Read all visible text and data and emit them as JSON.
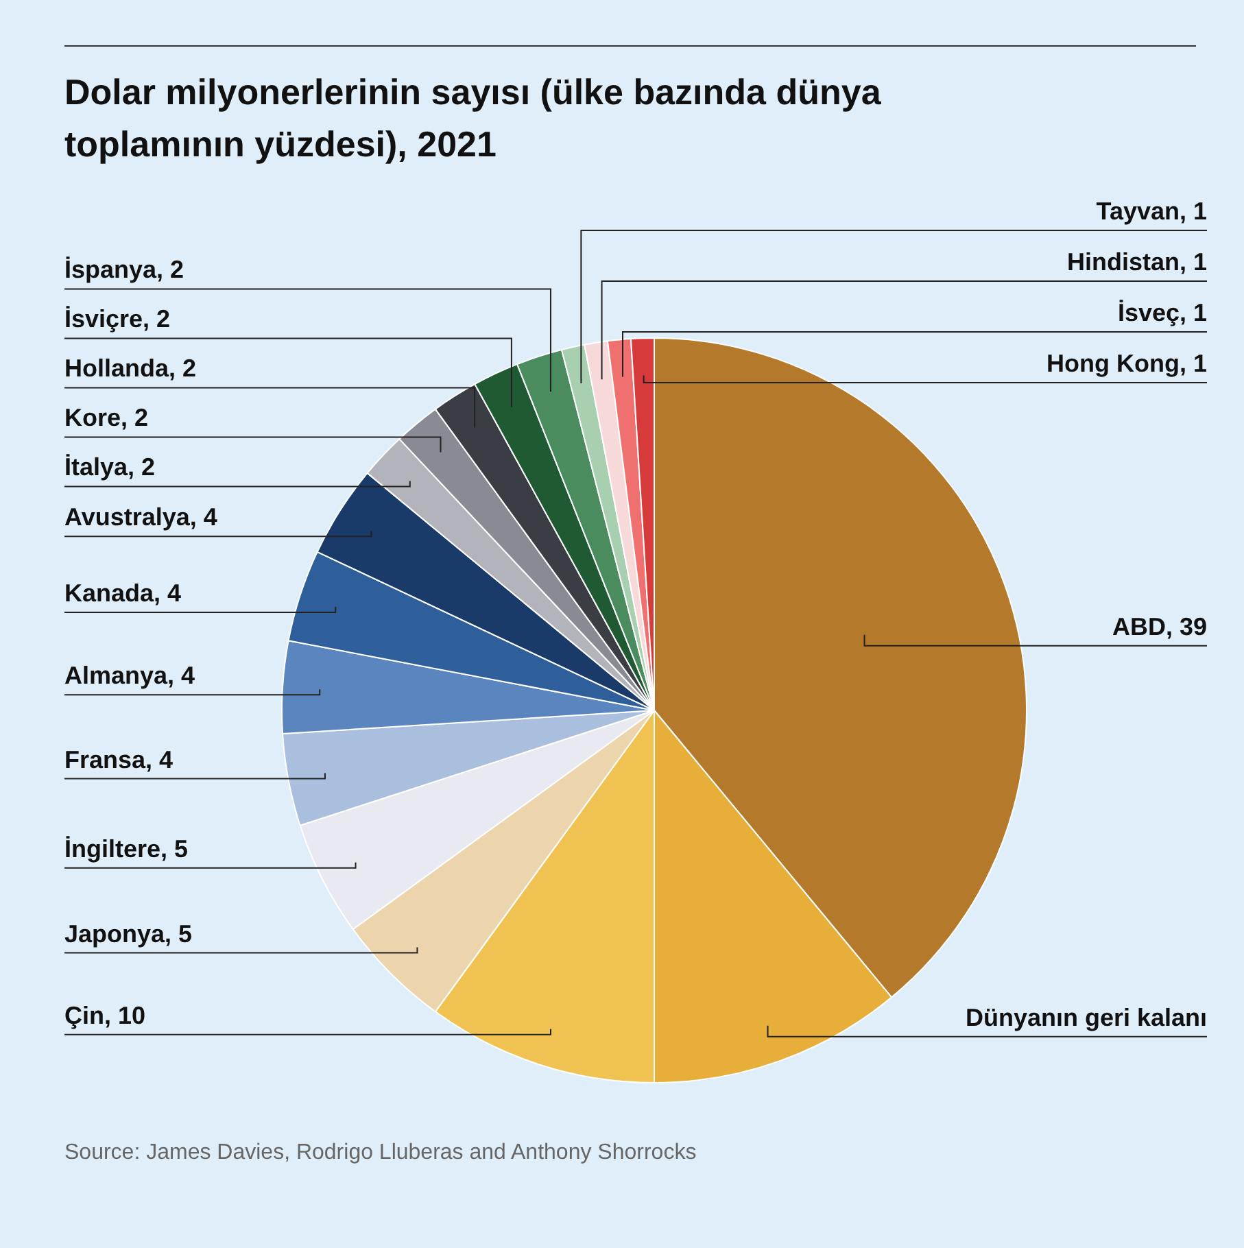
{
  "chart_data": {
    "type": "pie",
    "title": "Dolar milyonerlerinin sayısı (ülke bazında dünya toplamının yüzdesi), 2021",
    "categories": [
      "ABD",
      "Dünyanın geri kalanı",
      "Çin",
      "Japonya",
      "İngiltere",
      "Fransa",
      "Almanya",
      "Kanada",
      "Avustralya",
      "İtalya",
      "Kore",
      "Hollanda",
      "İsviçre",
      "İspanya",
      "Tayvan",
      "Hindistan",
      "İsveç",
      "Hong Kong"
    ],
    "values": [
      39,
      11,
      10,
      5,
      5,
      4,
      4,
      4,
      4,
      2,
      2,
      2,
      2,
      2,
      1,
      1,
      1,
      1
    ],
    "value_labels": [
      "39",
      null,
      "10",
      "5",
      "5",
      "4",
      "4",
      "4",
      "4",
      "2",
      "2",
      "2",
      "2",
      "2",
      "1",
      "1",
      "1",
      "1"
    ],
    "colors": [
      "#b5792b",
      "#e8ae3a",
      "#f0c252",
      "#ecd5ac",
      "#e9e9f2",
      "#a9bfdd",
      "#5a85bf",
      "#2f5f9a",
      "#1a3a6a",
      "#b3b3bc",
      "#8a8a94",
      "#3a3d44",
      "#1f5a32",
      "#4a8c5e",
      "#a8cfb0",
      "#f7d9d9",
      "#f07070",
      "#d63a3a"
    ],
    "annotations": [
      "Source: James Davies, Rodrigo Lluberas and Anthony Shorrocks"
    ]
  }
}
